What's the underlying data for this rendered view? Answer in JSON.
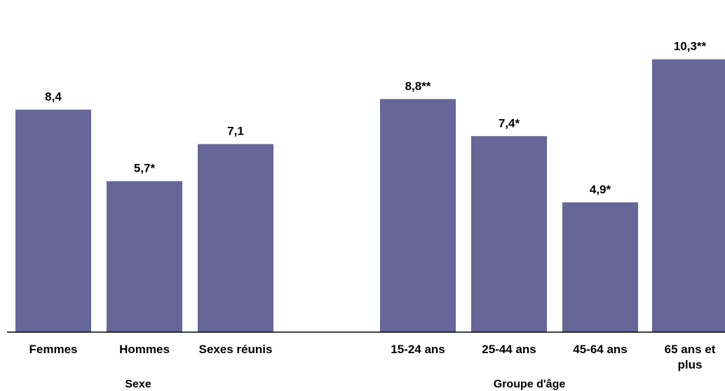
{
  "chart_data": {
    "type": "bar",
    "categories": [
      "Femmes",
      "Hommes",
      "Sexes réunis",
      "15-24 ans",
      "25-44 ans",
      "45-64 ans",
      "65 ans et plus"
    ],
    "category_lines": [
      [
        "Femmes"
      ],
      [
        "Hommes"
      ],
      [
        "Sexes réunis"
      ],
      [
        "15-24 ans"
      ],
      [
        "25-44 ans"
      ],
      [
        "45-64 ans"
      ],
      [
        "65 ans et",
        "plus"
      ]
    ],
    "values": [
      8.4,
      5.7,
      7.1,
      8.8,
      7.4,
      4.9,
      10.3
    ],
    "value_labels": [
      "8,4",
      "5,7*",
      "7,1",
      "8,8**",
      "7,4*",
      "4,9*",
      "10,3**"
    ],
    "groups": [
      {
        "label": "Sexe",
        "categories": [
          "Femmes",
          "Hommes",
          "Sexes réunis"
        ]
      },
      {
        "label": "Groupe d'âge",
        "categories": [
          "15-24 ans",
          "25-44 ans",
          "45-64 ans",
          "65 ans et plus"
        ]
      }
    ],
    "ylim": [
      0,
      11.3
    ],
    "grid": false,
    "bar_color": "#666699",
    "axis_color": "#000000"
  }
}
